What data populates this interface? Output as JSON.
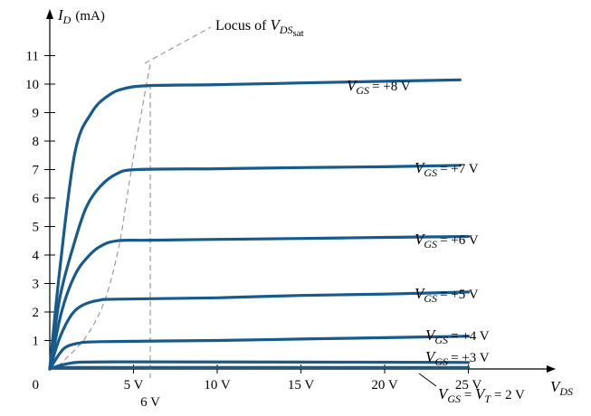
{
  "chart_data": {
    "type": "line",
    "title": "",
    "ylabel": "mA",
    "xlabel": "",
    "xlim": [
      0,
      27
    ],
    "ylim": [
      0,
      11.5
    ],
    "x_ticks": [
      0,
      5,
      10,
      15,
      20,
      25
    ],
    "x_tick_labels": [
      "0",
      "5 V",
      "10 V",
      "15 V",
      "20 V",
      "25 V"
    ],
    "y_ticks": [
      1,
      2,
      3,
      4,
      5,
      6,
      7,
      8,
      9,
      10,
      11
    ],
    "y_tick_labels": [
      "1",
      "2",
      "3",
      "4",
      "5",
      "6",
      "7",
      "8",
      "9",
      "10",
      "11"
    ],
    "extra_x_label": "6 V",
    "series": [
      {
        "vgs": 8,
        "end_value": 10.15,
        "points": [
          [
            0,
            0
          ],
          [
            0.6,
            3.5
          ],
          [
            1.5,
            7.6
          ],
          [
            2.5,
            9.0
          ],
          [
            3.5,
            9.6
          ],
          [
            4.5,
            9.85
          ],
          [
            6,
            9.95
          ],
          [
            10,
            9.98
          ],
          [
            15,
            10.04
          ],
          [
            20,
            10.1
          ],
          [
            24.5,
            10.15
          ]
        ]
      },
      {
        "vgs": 7,
        "end_value": 7.15,
        "points": [
          [
            0,
            0
          ],
          [
            0.6,
            2.5
          ],
          [
            1.5,
            4.5
          ],
          [
            2.2,
            5.7
          ],
          [
            3,
            6.4
          ],
          [
            4,
            6.85
          ],
          [
            5.2,
            7.0
          ],
          [
            10,
            7.03
          ],
          [
            15,
            7.07
          ],
          [
            20,
            7.1
          ],
          [
            24.5,
            7.15
          ]
        ]
      },
      {
        "vgs": 6,
        "end_value": 4.65,
        "points": [
          [
            0,
            0
          ],
          [
            0.7,
            2.0
          ],
          [
            1.5,
            3.3
          ],
          [
            2.3,
            3.95
          ],
          [
            3,
            4.3
          ],
          [
            4,
            4.5
          ],
          [
            6,
            4.52
          ],
          [
            10,
            4.55
          ],
          [
            15,
            4.58
          ],
          [
            20,
            4.62
          ],
          [
            25,
            4.65
          ]
        ]
      },
      {
        "vgs": 5,
        "end_value": 2.7,
        "points": [
          [
            0,
            0
          ],
          [
            0.6,
            1.1
          ],
          [
            1.3,
            1.9
          ],
          [
            2,
            2.25
          ],
          [
            3,
            2.42
          ],
          [
            4,
            2.45
          ],
          [
            10,
            2.5
          ],
          [
            15,
            2.58
          ],
          [
            20,
            2.63
          ],
          [
            25,
            2.7
          ]
        ]
      },
      {
        "vgs": 4,
        "end_value": 1.15,
        "points": [
          [
            0,
            0
          ],
          [
            0.6,
            0.55
          ],
          [
            1,
            0.78
          ],
          [
            1.7,
            0.9
          ],
          [
            3,
            0.96
          ],
          [
            10,
            1.0
          ],
          [
            15,
            1.05
          ],
          [
            20,
            1.1
          ],
          [
            25,
            1.15
          ]
        ]
      },
      {
        "vgs": 3,
        "end_value": 0.23,
        "points": [
          [
            0,
            0
          ],
          [
            0.6,
            0.12
          ],
          [
            1.2,
            0.2
          ],
          [
            2,
            0.24
          ],
          [
            5,
            0.25
          ],
          [
            15,
            0.24
          ],
          [
            25,
            0.23
          ]
        ]
      },
      {
        "vgs": 2,
        "end_value": 0.05,
        "points": [
          [
            0,
            0.05
          ],
          [
            25,
            0.05
          ]
        ]
      }
    ],
    "locus": {
      "points": [
        [
          0.5,
          0.1
        ],
        [
          2,
          1.0
        ],
        [
          3,
          2.0
        ],
        [
          3.6,
          3.0
        ],
        [
          4.2,
          4.5
        ],
        [
          4.6,
          6.0
        ],
        [
          5.1,
          7.8
        ],
        [
          5.5,
          9.1
        ],
        [
          6,
          10.7
        ]
      ]
    },
    "vertical_marker_x": 6,
    "labels": {
      "y_axis_symbol": "I",
      "y_axis_sub": "D",
      "y_axis_unit": "(mA)",
      "x_axis_symbol": "V",
      "x_axis_sub": "DS",
      "locus_prefix": "Locus of ",
      "locus_symbol": "V",
      "locus_sub": "DS",
      "locus_subsub": "sat",
      "vgs_symbol": "V",
      "vgs_sub": "GS",
      "vt_symbol": "V",
      "vt_sub": "T",
      "vgs_text": [
        "= +8 V",
        "= +7 V",
        "= +6 V",
        "= +5 V",
        "= +4 V",
        "= +3 V"
      ],
      "vt_text_mid": " = ",
      "vt_text_end": " = 2 V"
    }
  }
}
